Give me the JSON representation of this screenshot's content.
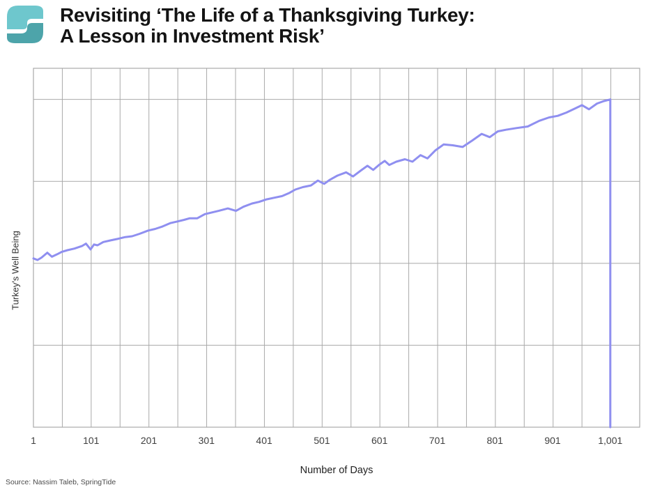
{
  "header": {
    "title_line1": "Revisiting ‘The Life of a Thanksgiving Turkey:",
    "title_line2": "A Lesson in Investment Risk’",
    "logo": {
      "name": "springtide-logo",
      "color_light": "#6ec7cd",
      "color_dark": "#4da4aa"
    }
  },
  "chart_data": {
    "type": "line",
    "title": "",
    "xlabel": "Number of Days",
    "ylabel": "Turkey's Well Being",
    "x_ticks": [
      1,
      101,
      201,
      301,
      401,
      501,
      601,
      701,
      801,
      901,
      1001
    ],
    "x_tick_labels": [
      "1",
      "101",
      "201",
      "301",
      "401",
      "501",
      "601",
      "701",
      "801",
      "901",
      "1,001"
    ],
    "xlim": [
      1,
      1052
    ],
    "ylim": [
      0,
      4.38
    ],
    "y_tick_labels": [],
    "y_gridlines": [
      1,
      2,
      3,
      4
    ],
    "x_grid_divisions": 21,
    "grid": true,
    "legend_position": "none",
    "line_color": "#8f8ff0",
    "grid_color": "#a9a9a9",
    "axis_text_color": "#3f3f3f",
    "series": [
      {
        "name": "Turkey's Well Being",
        "points": [
          [
            1,
            2.06
          ],
          [
            8,
            2.04
          ],
          [
            15,
            2.07
          ],
          [
            25,
            2.13
          ],
          [
            33,
            2.08
          ],
          [
            42,
            2.11
          ],
          [
            50,
            2.14
          ],
          [
            60,
            2.16
          ],
          [
            72,
            2.18
          ],
          [
            85,
            2.21
          ],
          [
            92,
            2.24
          ],
          [
            100,
            2.17
          ],
          [
            106,
            2.23
          ],
          [
            112,
            2.22
          ],
          [
            122,
            2.26
          ],
          [
            135,
            2.28
          ],
          [
            148,
            2.3
          ],
          [
            160,
            2.32
          ],
          [
            172,
            2.33
          ],
          [
            185,
            2.36
          ],
          [
            200,
            2.4
          ],
          [
            212,
            2.42
          ],
          [
            225,
            2.45
          ],
          [
            238,
            2.49
          ],
          [
            250,
            2.51
          ],
          [
            262,
            2.53
          ],
          [
            272,
            2.55
          ],
          [
            285,
            2.55
          ],
          [
            298,
            2.6
          ],
          [
            310,
            2.62
          ],
          [
            322,
            2.64
          ],
          [
            338,
            2.67
          ],
          [
            352,
            2.64
          ],
          [
            365,
            2.69
          ],
          [
            380,
            2.73
          ],
          [
            392,
            2.75
          ],
          [
            405,
            2.78
          ],
          [
            418,
            2.8
          ],
          [
            432,
            2.82
          ],
          [
            445,
            2.86
          ],
          [
            455,
            2.9
          ],
          [
            468,
            2.93
          ],
          [
            482,
            2.95
          ],
          [
            494,
            3.01
          ],
          [
            505,
            2.97
          ],
          [
            515,
            3.02
          ],
          [
            528,
            3.07
          ],
          [
            543,
            3.11
          ],
          [
            555,
            3.06
          ],
          [
            568,
            3.13
          ],
          [
            580,
            3.19
          ],
          [
            590,
            3.14
          ],
          [
            600,
            3.2
          ],
          [
            610,
            3.25
          ],
          [
            618,
            3.2
          ],
          [
            630,
            3.24
          ],
          [
            645,
            3.27
          ],
          [
            658,
            3.24
          ],
          [
            672,
            3.32
          ],
          [
            684,
            3.28
          ],
          [
            698,
            3.38
          ],
          [
            712,
            3.45
          ],
          [
            728,
            3.44
          ],
          [
            745,
            3.42
          ],
          [
            762,
            3.5
          ],
          [
            778,
            3.58
          ],
          [
            792,
            3.54
          ],
          [
            806,
            3.61
          ],
          [
            820,
            3.63
          ],
          [
            838,
            3.65
          ],
          [
            858,
            3.67
          ],
          [
            878,
            3.74
          ],
          [
            895,
            3.78
          ],
          [
            910,
            3.8
          ],
          [
            925,
            3.84
          ],
          [
            940,
            3.89
          ],
          [
            952,
            3.93
          ],
          [
            964,
            3.88
          ],
          [
            978,
            3.95
          ],
          [
            990,
            3.98
          ],
          [
            1001,
            4.0
          ],
          [
            1001,
            0
          ]
        ]
      }
    ]
  },
  "footer": {
    "source": "Source: Nassim Taleb, SpringTide"
  }
}
